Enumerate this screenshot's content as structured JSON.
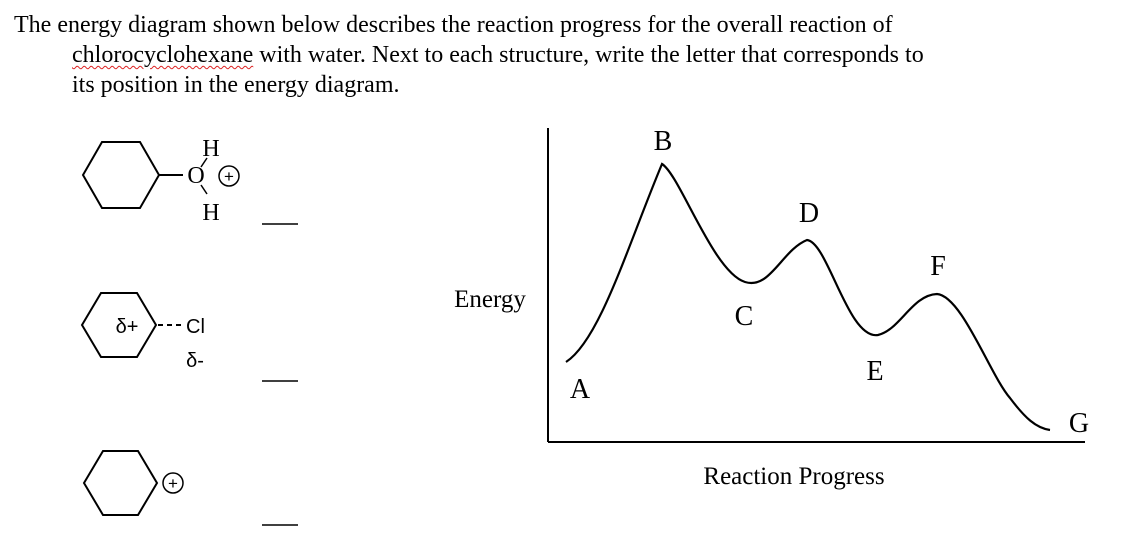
{
  "question": {
    "line1": "The energy diagram shown below describes the reaction progress for the overall reaction of",
    "line2_word": "chlorocyclohexane",
    "line2_rest": " with water.  Next to each structure, write the letter that corresponds to",
    "line3": "its position in the energy diagram."
  },
  "structures": [
    {
      "atoms": {
        "top_h": "H",
        "oxygen": "O",
        "bottom_h": "H",
        "charge": "+"
      },
      "answer": ""
    },
    {
      "atoms": {
        "partial_pos": "δ+",
        "chlorine": "Cl",
        "partial_neg": "δ-"
      },
      "answer": ""
    },
    {
      "atoms": {
        "charge": "+"
      },
      "answer": ""
    }
  ],
  "diagram": {
    "y_label": "Energy",
    "x_label": "Reaction Progress",
    "points": [
      {
        "letter": "A",
        "kind": "start"
      },
      {
        "letter": "B",
        "kind": "maximum"
      },
      {
        "letter": "C",
        "kind": "minimum"
      },
      {
        "letter": "D",
        "kind": "maximum"
      },
      {
        "letter": "E",
        "kind": "minimum"
      },
      {
        "letter": "F",
        "kind": "maximum"
      },
      {
        "letter": "G",
        "kind": "end"
      }
    ]
  }
}
